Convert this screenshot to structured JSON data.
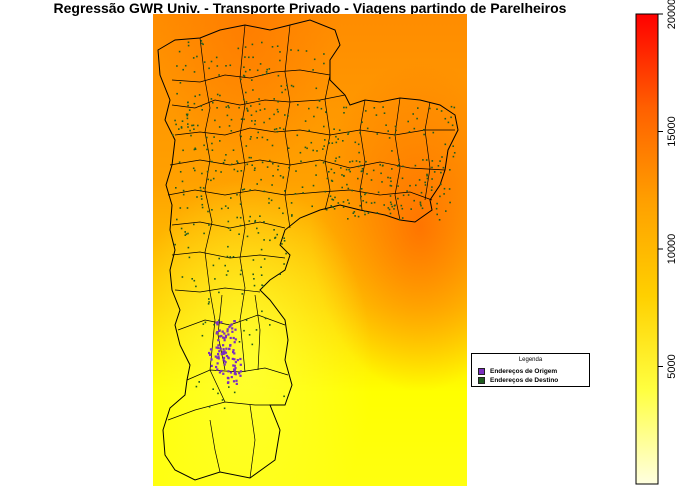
{
  "title": "Regressão GWR Univ. - Transporte Privado - Viagens partindo de Parelheiros",
  "colorbar": {
    "ticks": [
      "5000",
      "10000",
      "15000",
      "20000"
    ],
    "tick_values": [
      5000,
      10000,
      15000,
      20000
    ],
    "range": [
      0,
      20000
    ],
    "colors": [
      "#ffffe0",
      "#ffff00",
      "#ffa500",
      "#ff0000"
    ]
  },
  "legend": {
    "title": "Legenda",
    "items": [
      {
        "label": "Endereços de Origem",
        "color": "#7b2fbf"
      },
      {
        "label": "Endereços de Destino",
        "color": "#1f5c1f"
      }
    ]
  },
  "colors": {
    "surface_hot": "#ff8c00",
    "surface_mid": "#ffb000",
    "surface_cool": "#ffff00",
    "boundary": "#000000",
    "origin_points": "#7b2fbf",
    "destination_points": "#1f5c1f"
  }
}
